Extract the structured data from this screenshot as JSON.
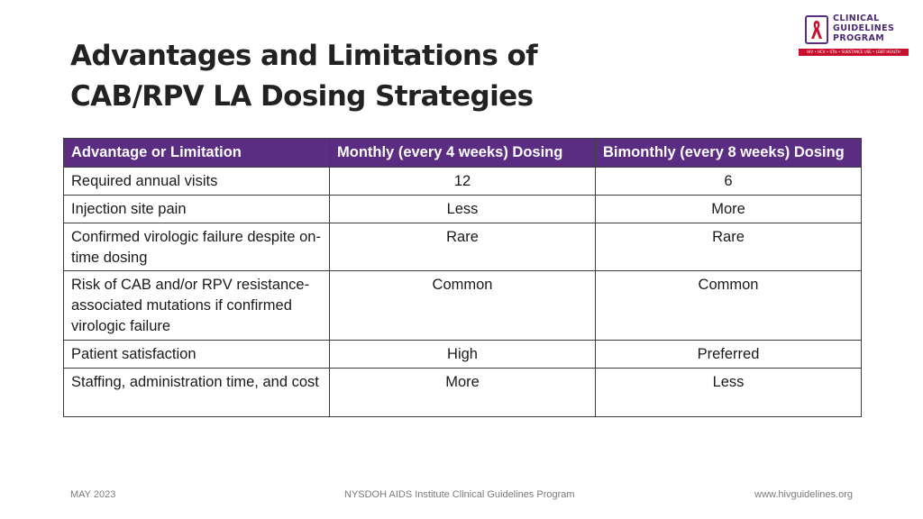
{
  "slide": {
    "title_line1": "Advantages and Limitations of",
    "title_line2": "CAB/RPV LA Dosing Strategies"
  },
  "logo": {
    "line1": "CLINICAL",
    "line2": "GUIDELINES",
    "line3": "PROGRAM",
    "tagline": "HIV • HCV • STIs • SUBSTANCE USE • LGBT HEALTH",
    "brand_color": "#5b2d82",
    "accent_color": "#c8102e",
    "icon": "red-ribbon-icon"
  },
  "table": {
    "header_color": "#5b2d82",
    "headers": [
      "Advantage or Limitation",
      "Monthly (every 4 weeks) Dosing",
      "Bimonthly (every 8 weeks) Dosing"
    ],
    "rows": [
      [
        "Required annual visits",
        "12",
        "6"
      ],
      [
        "Injection site pain",
        "Less",
        "More"
      ],
      [
        "Confirmed virologic failure despite on-time dosing",
        "Rare",
        "Rare"
      ],
      [
        "Risk of CAB and/or RPV resistance-associated mutations if confirmed virologic failure",
        "Common",
        "Common"
      ],
      [
        "Patient satisfaction",
        "High",
        "Preferred"
      ],
      [
        "Staffing, administration time, and cost",
        "More",
        "Less"
      ]
    ]
  },
  "footer": {
    "date": "MAY 2023",
    "org": "NYSDOH AIDS Institute Clinical Guidelines Program",
    "url": "www.hivguidelines.org"
  }
}
